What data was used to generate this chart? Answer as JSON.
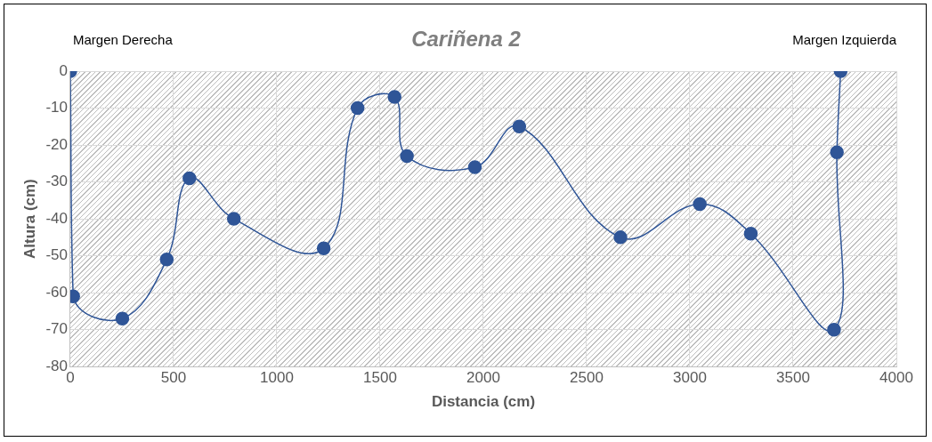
{
  "chart_data": {
    "type": "line",
    "title": "Cariñena 2",
    "xlabel": "Distancia (cm)",
    "ylabel": "Altura (cm)",
    "annotations": [
      "Margen Derecha",
      "Margen Izquierda"
    ],
    "series": [
      {
        "color": "#2f5597",
        "x": [
          0,
          14,
          252,
          467,
          577,
          792,
          1227,
          1391,
          1570,
          1630,
          1959,
          2174,
          2664,
          3048,
          3295,
          3698,
          3712,
          3730
        ],
        "values": [
          0,
          -61,
          -67,
          -51,
          -29,
          -40,
          -48,
          -10,
          -7,
          -23,
          -26,
          -15,
          -45,
          -36,
          -44,
          -70,
          -22,
          0
        ]
      }
    ],
    "xlim": [
      0,
      4000
    ],
    "xticks": [
      0,
      500,
      1000,
      1500,
      2000,
      2500,
      3000,
      3500,
      4000
    ],
    "ylim": [
      -80,
      0
    ],
    "yticks": [
      -80,
      -70,
      -60,
      -50,
      -40,
      -30,
      -20,
      -10,
      0
    ],
    "grid": true,
    "legend": false,
    "marker": "circle",
    "line_style": "solid"
  }
}
